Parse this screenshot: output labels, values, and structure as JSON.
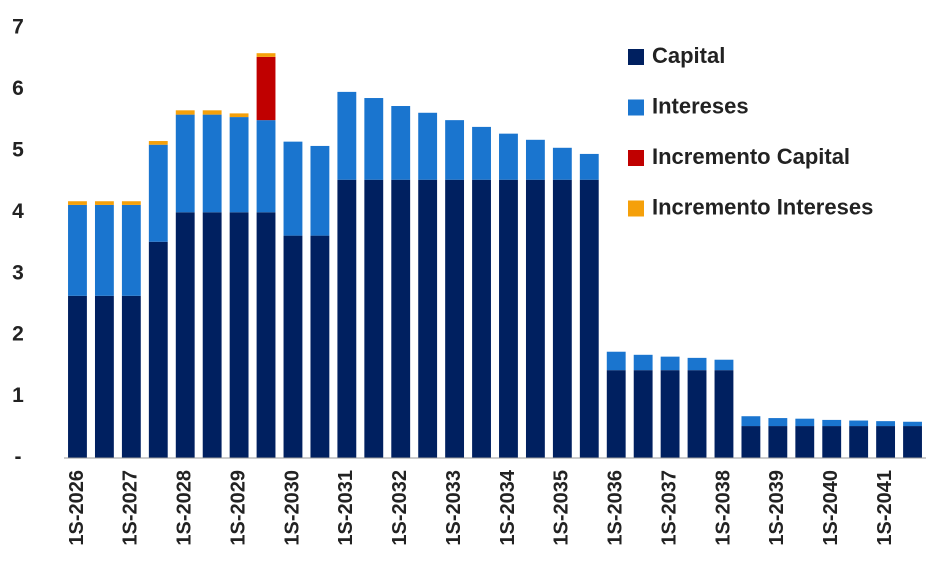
{
  "chart_data": {
    "type": "bar",
    "stacked": true,
    "categories": [
      "1S-2026",
      null,
      "1S-2027",
      null,
      "1S-2028",
      null,
      "1S-2029",
      null,
      "1S-2030",
      null,
      "1S-2031",
      null,
      "1S-2032",
      null,
      "1S-2033",
      null,
      "1S-2034",
      null,
      "1S-2035",
      null,
      "1S-2036",
      null,
      "1S-2037",
      null,
      "1S-2038",
      null,
      "1S-2039",
      null,
      "1S-2040",
      null,
      "1S-2041",
      null
    ],
    "series": [
      {
        "name": "Capital",
        "color": "#002060",
        "values": [
          2.64,
          2.64,
          2.64,
          3.52,
          4.0,
          4.0,
          4.0,
          4.0,
          3.62,
          3.62,
          4.53,
          4.53,
          4.53,
          4.53,
          4.53,
          4.53,
          4.53,
          4.53,
          4.53,
          4.53,
          1.43,
          1.43,
          1.43,
          1.43,
          1.43,
          0.52,
          0.52,
          0.52,
          0.52,
          0.52,
          0.52,
          0.52
        ]
      },
      {
        "name": "Intereses",
        "color": "#1a75cf",
        "values": [
          1.48,
          1.48,
          1.48,
          1.58,
          1.59,
          1.59,
          1.55,
          1.5,
          1.53,
          1.46,
          1.43,
          1.33,
          1.2,
          1.09,
          0.97,
          0.86,
          0.75,
          0.65,
          0.52,
          0.42,
          0.3,
          0.25,
          0.22,
          0.2,
          0.17,
          0.16,
          0.13,
          0.12,
          0.1,
          0.09,
          0.08,
          0.07
        ]
      },
      {
        "name": "Incremento Capital",
        "color": "#c00000",
        "values": [
          0,
          0,
          0,
          0,
          0,
          0,
          0,
          1.03,
          0,
          0,
          0,
          0,
          0,
          0,
          0,
          0,
          0,
          0,
          0,
          0,
          0,
          0,
          0,
          0,
          0,
          0,
          0,
          0,
          0,
          0,
          0,
          0
        ]
      },
      {
        "name": "Incremento Intereses",
        "color": "#f5a00a",
        "values": [
          0.06,
          0.06,
          0.06,
          0.06,
          0.07,
          0.07,
          0.06,
          0.06,
          0,
          0,
          0,
          0,
          0,
          0,
          0,
          0,
          0,
          0,
          0,
          0,
          0,
          0,
          0,
          0,
          0,
          0,
          0,
          0,
          0,
          0,
          0,
          0
        ]
      }
    ],
    "ylim": [
      0,
      7
    ],
    "yticks": [
      {
        "value": 0,
        "label": "-"
      },
      1,
      2,
      3,
      4,
      5,
      6,
      7
    ],
    "grid": false,
    "legend": "upper right"
  }
}
